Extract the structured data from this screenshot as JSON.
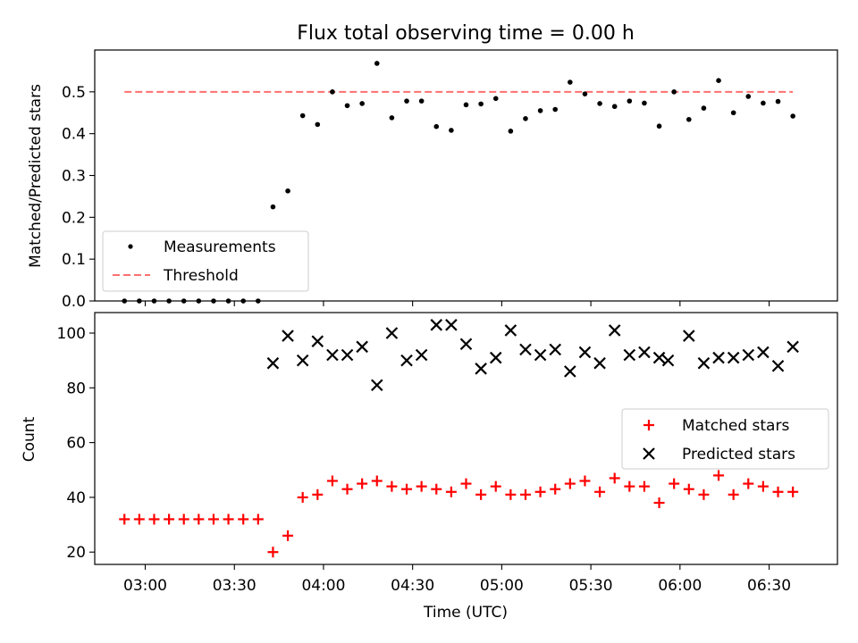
{
  "figure": {
    "title": "Flux total observing time = 0.00 h",
    "xlabel": "Time (UTC)",
    "xticks": [
      "03:00",
      "03:30",
      "04:00",
      "04:30",
      "05:00",
      "05:30",
      "06:00",
      "06:30"
    ]
  },
  "chart_data": [
    {
      "type": "scatter",
      "title": "Flux total observing time = 0.00 h",
      "ylabel": "Matched/Predicted stars",
      "ylim": [
        0,
        0.6
      ],
      "yticks": [
        "0.0",
        "0.1",
        "0.2",
        "0.3",
        "0.4",
        "0.5"
      ],
      "xlim_minutes_utc": [
        163,
        413
      ],
      "legend": {
        "placement": "lower-left",
        "entries": [
          "Measurements",
          "Threshold"
        ]
      },
      "series": [
        {
          "name": "Measurements",
          "kind": "scatter",
          "color": "#000000",
          "x": [
            "02:53",
            "02:58",
            "03:03",
            "03:08",
            "03:13",
            "03:18",
            "03:23",
            "03:28",
            "03:33",
            "03:38",
            "03:43",
            "03:48",
            "03:53",
            "03:58",
            "04:03",
            "04:08",
            "04:13",
            "04:18",
            "04:23",
            "04:28",
            "04:33",
            "04:38",
            "04:43",
            "04:48",
            "04:53",
            "04:58",
            "05:03",
            "05:08",
            "05:13",
            "05:18",
            "05:23",
            "05:28",
            "05:33",
            "05:38",
            "05:43",
            "05:48",
            "05:53",
            "05:58",
            "06:03",
            "06:08",
            "06:13",
            "06:18",
            "06:23",
            "06:28",
            "06:33",
            "06:38"
          ],
          "y": [
            0,
            0,
            0,
            0,
            0,
            0,
            0,
            0,
            0,
            0,
            0.225,
            0.263,
            0.443,
            0.422,
            0.5,
            0.467,
            0.472,
            0.568,
            0.438,
            0.478,
            0.478,
            0.417,
            0.408,
            0.469,
            0.471,
            0.484,
            0.406,
            0.436,
            0.455,
            0.458,
            0.523,
            0.495,
            0.472,
            0.465,
            0.478,
            0.473,
            0.418,
            0.5,
            0.434,
            0.461,
            0.527,
            0.45,
            0.489,
            0.473,
            0.477,
            0.442
          ]
        },
        {
          "name": "Threshold",
          "kind": "dashed-line",
          "color": "#ff7070",
          "x": [
            "02:53",
            "06:38"
          ],
          "y": [
            0.5,
            0.5
          ]
        }
      ]
    },
    {
      "type": "scatter",
      "xlabel": "Time (UTC)",
      "ylabel": "Count",
      "ylim": [
        15.5,
        107.5
      ],
      "yticks": [
        "20",
        "40",
        "60",
        "80",
        "100"
      ],
      "xlim_minutes_utc": [
        163,
        413
      ],
      "legend": {
        "placement": "center-right",
        "entries": [
          "Matched stars",
          "Predicted stars"
        ]
      },
      "series": [
        {
          "name": "Matched stars",
          "marker": "+",
          "color": "#ff0000",
          "x": [
            "02:53",
            "02:58",
            "03:03",
            "03:08",
            "03:13",
            "03:18",
            "03:23",
            "03:28",
            "03:33",
            "03:38",
            "03:43",
            "03:48",
            "03:53",
            "03:58",
            "04:03",
            "04:08",
            "04:13",
            "04:18",
            "04:23",
            "04:28",
            "04:33",
            "04:38",
            "04:43",
            "04:48",
            "04:53",
            "04:58",
            "05:03",
            "05:08",
            "05:13",
            "05:18",
            "05:23",
            "05:28",
            "05:33",
            "05:38",
            "05:43",
            "05:48",
            "05:53",
            "05:58",
            "06:03",
            "06:08",
            "06:13",
            "06:18",
            "06:23",
            "06:28",
            "06:33",
            "06:38"
          ],
          "y": [
            32,
            32,
            32,
            32,
            32,
            32,
            32,
            32,
            32,
            32,
            20,
            26,
            40,
            41,
            46,
            43,
            45,
            46,
            44,
            43,
            44,
            43,
            42,
            45,
            41,
            44,
            41,
            41,
            42,
            43,
            45,
            46,
            42,
            47,
            44,
            44,
            38,
            45,
            43,
            41,
            48,
            41,
            45,
            44,
            42,
            42
          ]
        },
        {
          "name": "Predicted stars",
          "marker": "x",
          "color": "#000000",
          "x": [
            "03:43",
            "03:48",
            "03:53",
            "03:58",
            "04:03",
            "04:08",
            "04:13",
            "04:18",
            "04:23",
            "04:28",
            "04:33",
            "04:38",
            "04:43",
            "04:48",
            "04:53",
            "04:58",
            "05:03",
            "05:08",
            "05:13",
            "05:18",
            "05:23",
            "05:28",
            "05:33",
            "05:38",
            "05:43",
            "05:48",
            "05:53",
            "05:56",
            "06:03",
            "06:08",
            "06:13",
            "06:18",
            "06:23",
            "06:28",
            "06:33",
            "06:38"
          ],
          "y": [
            89,
            99,
            90,
            97,
            92,
            92,
            95,
            81,
            100,
            90,
            92,
            103,
            103,
            96,
            87,
            91,
            101,
            94,
            92,
            94,
            86,
            93,
            89,
            101,
            92,
            93,
            91,
            90,
            99,
            89,
            91,
            91,
            92,
            93,
            88,
            95
          ]
        }
      ]
    }
  ]
}
